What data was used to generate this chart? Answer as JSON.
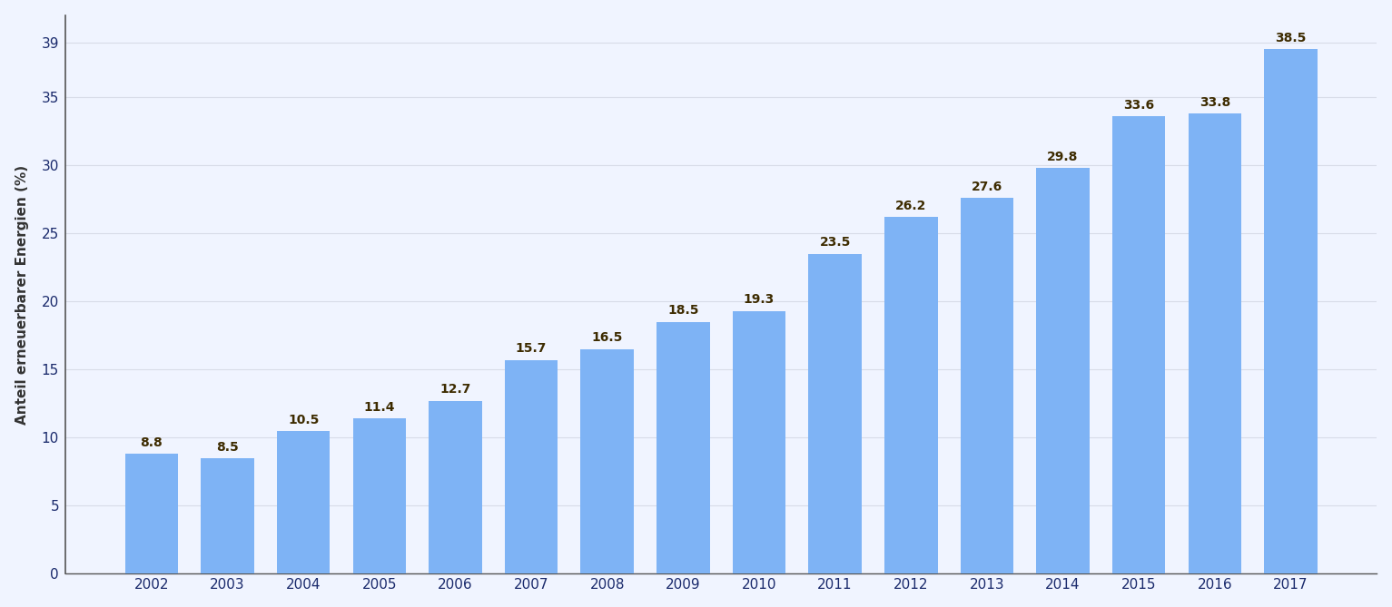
{
  "years": [
    2002,
    2003,
    2004,
    2005,
    2006,
    2007,
    2008,
    2009,
    2010,
    2011,
    2012,
    2013,
    2014,
    2015,
    2016,
    2017
  ],
  "values": [
    8.8,
    8.5,
    10.5,
    11.4,
    12.7,
    15.7,
    16.5,
    18.5,
    19.3,
    23.5,
    26.2,
    27.6,
    29.8,
    33.6,
    33.8,
    38.5
  ],
  "bar_color": "#7EB3F5",
  "background_color": "#F0F4FF",
  "grid_color": "#D8DCE8",
  "ylabel_black": "Anteil ",
  "ylabel_red": "erneuerbarer",
  "ylabel_black2": " Energien (%)",
  "tick_label_color": "#1A2A6C",
  "ytick_label_color": "#1A2A6C",
  "ylim": [
    0,
    41
  ],
  "yticks": [
    0,
    5,
    10,
    15,
    20,
    25,
    30,
    35,
    39
  ],
  "label_color": "#3D2B00",
  "label_fontsize": 10,
  "axis_fontsize": 11,
  "tick_fontsize": 11,
  "spine_color": "#555555",
  "bar_width": 0.7
}
